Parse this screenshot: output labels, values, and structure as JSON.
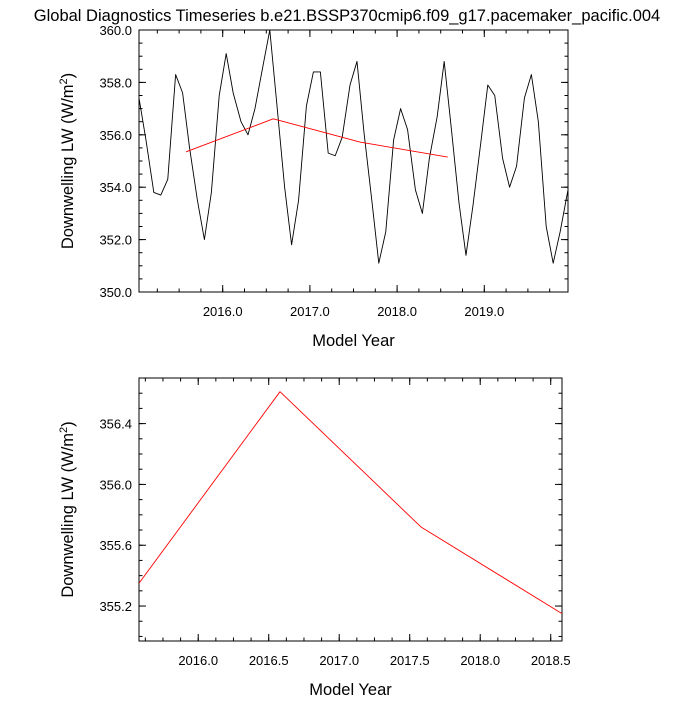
{
  "title": "Global Diagnostics Timeseries b.e21.BSSP370cmip6.f09_g17.pacemaker_pacific.004",
  "chart_data": [
    {
      "type": "line",
      "xlabel": "Model Year",
      "ylabel_main": "Downwelling LW (W/m",
      "ylabel_sup": "2",
      "ylabel_close": ")",
      "xlim": [
        2015.04,
        2019.96
      ],
      "ylim": [
        350.0,
        360.0
      ],
      "xticks": [
        2016.0,
        2017.0,
        2018.0,
        2019.0
      ],
      "xtick_labels": [
        "2016.0",
        "2017.0",
        "2018.0",
        "2019.0"
      ],
      "yticks": [
        350.0,
        352.0,
        354.0,
        356.0,
        358.0,
        360.0
      ],
      "ytick_labels": [
        "350.0",
        "352.0",
        "354.0",
        "356.0",
        "358.0",
        "360.0"
      ],
      "grid": false,
      "series": [
        {
          "color": "#000000",
          "x": [
            2015.04,
            2015.12,
            2015.21,
            2015.29,
            2015.37,
            2015.46,
            2015.54,
            2015.62,
            2015.71,
            2015.79,
            2015.87,
            2015.96,
            2016.04,
            2016.12,
            2016.21,
            2016.29,
            2016.37,
            2016.46,
            2016.54,
            2016.62,
            2016.71,
            2016.79,
            2016.87,
            2016.96,
            2017.04,
            2017.12,
            2017.21,
            2017.29,
            2017.37,
            2017.46,
            2017.54,
            2017.62,
            2017.71,
            2017.79,
            2017.87,
            2017.96,
            2018.04,
            2018.12,
            2018.21,
            2018.29,
            2018.37,
            2018.46,
            2018.54,
            2018.62,
            2018.71,
            2018.79,
            2018.87,
            2018.96,
            2019.04,
            2019.12,
            2019.21,
            2019.29,
            2019.37,
            2019.46,
            2019.54,
            2019.62,
            2019.71,
            2019.79,
            2019.87,
            2019.96
          ],
          "values": [
            357.4,
            355.8,
            353.8,
            353.7,
            354.3,
            358.3,
            357.6,
            355.5,
            353.5,
            352.0,
            353.8,
            357.5,
            359.1,
            357.6,
            356.5,
            356.0,
            357.0,
            358.6,
            360.0,
            357.2,
            354.0,
            351.8,
            353.5,
            357.1,
            358.4,
            358.4,
            355.3,
            355.2,
            355.9,
            357.9,
            358.8,
            356.1,
            353.5,
            351.1,
            352.3,
            355.8,
            357.0,
            356.2,
            353.9,
            353.0,
            355.1,
            356.7,
            358.8,
            356.3,
            353.4,
            351.4,
            353.3,
            355.7,
            357.9,
            357.5,
            355.1,
            354.0,
            354.8,
            357.4,
            358.3,
            356.5,
            352.5,
            351.1,
            352.3,
            353.9
          ]
        },
        {
          "color": "#ff0000",
          "x": [
            2015.58,
            2016.58,
            2017.58,
            2018.58
          ],
          "values": [
            355.35,
            356.61,
            355.72,
            355.15
          ]
        }
      ]
    },
    {
      "type": "line",
      "xlabel": "Model Year",
      "ylabel_main": "Downwelling LW (W/m",
      "ylabel_sup": "2",
      "ylabel_close": ")",
      "xlim": [
        2015.58,
        2018.58
      ],
      "ylim": [
        354.97,
        356.7
      ],
      "xticks": [
        2016.0,
        2016.5,
        2017.0,
        2017.5,
        2018.0,
        2018.5
      ],
      "xtick_labels": [
        "2016.0",
        "2016.5",
        "2017.0",
        "2017.5",
        "2018.0",
        "2018.5"
      ],
      "yticks": [
        355.2,
        355.6,
        356.0,
        356.4
      ],
      "ytick_labels": [
        "355.2",
        "355.6",
        "356.0",
        "356.4"
      ],
      "grid": false,
      "series": [
        {
          "color": "#ff0000",
          "x": [
            2015.58,
            2016.58,
            2017.58,
            2018.58
          ],
          "values": [
            355.35,
            356.61,
            355.72,
            355.15
          ]
        }
      ]
    }
  ]
}
